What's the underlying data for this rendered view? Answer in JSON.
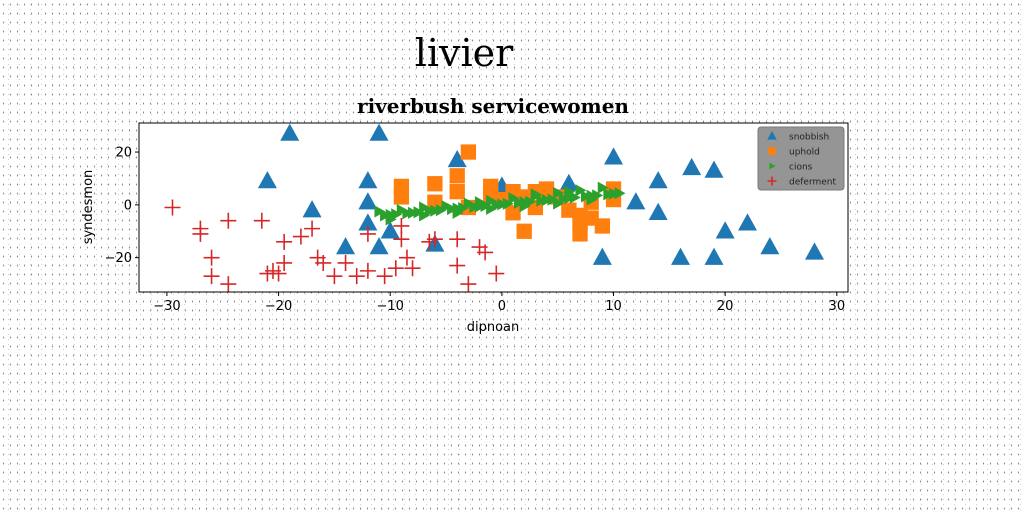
{
  "figure": {
    "suptitle": "livier"
  },
  "chart_data": {
    "type": "scatter",
    "title": "riverbush servicewomen",
    "xlabel": "dipnoan",
    "ylabel": "syndesmon",
    "xlim": [
      -32.5,
      31
    ],
    "ylim": [
      -33,
      31
    ],
    "xticks": [
      -30,
      -20,
      -10,
      0,
      10,
      20,
      30
    ],
    "yticks": [
      -20,
      0,
      20
    ],
    "xtick_labels": [
      "−30",
      "−20",
      "−10",
      "0",
      "10",
      "20",
      "30"
    ],
    "ytick_labels": [
      "−20",
      "0",
      "20"
    ],
    "grid": false,
    "legend": {
      "position": "top-right"
    },
    "series": [
      {
        "name": "snobbish",
        "marker": "triangle",
        "color": "#1f77b4",
        "points": [
          [
            -19,
            27
          ],
          [
            -11,
            27
          ],
          [
            -21,
            9
          ],
          [
            -17,
            -2
          ],
          [
            -12,
            9
          ],
          [
            -12,
            1
          ],
          [
            -12,
            -7
          ],
          [
            -14,
            -16
          ],
          [
            -11,
            -16
          ],
          [
            -10,
            -10
          ],
          [
            -4,
            17
          ],
          [
            -6,
            -15
          ],
          [
            0,
            7
          ],
          [
            6,
            8
          ],
          [
            10,
            18
          ],
          [
            12,
            1
          ],
          [
            14,
            -3
          ],
          [
            14,
            9
          ],
          [
            17,
            14
          ],
          [
            19,
            13
          ],
          [
            20,
            -10
          ],
          [
            22,
            -7
          ],
          [
            24,
            -16
          ],
          [
            28,
            -18
          ],
          [
            9,
            -20
          ],
          [
            16,
            -20
          ],
          [
            19,
            -20
          ]
        ]
      },
      {
        "name": "uphold",
        "marker": "square",
        "color": "#ff7f0e",
        "points": [
          [
            -9,
            7
          ],
          [
            -9,
            3
          ],
          [
            -6,
            8
          ],
          [
            -6,
            1
          ],
          [
            -4,
            11
          ],
          [
            -4,
            5
          ],
          [
            -3,
            20
          ],
          [
            -3,
            -1
          ],
          [
            -1,
            7
          ],
          [
            -1,
            3
          ],
          [
            0,
            2
          ],
          [
            1,
            -3
          ],
          [
            2,
            -10
          ],
          [
            2,
            3
          ],
          [
            3,
            5
          ],
          [
            3,
            -1
          ],
          [
            4,
            6
          ],
          [
            5,
            3
          ],
          [
            6,
            -2
          ],
          [
            7,
            -4
          ],
          [
            7,
            -7
          ],
          [
            7,
            -11
          ],
          [
            8,
            1
          ],
          [
            8,
            -5
          ],
          [
            9,
            -8
          ],
          [
            10,
            2
          ],
          [
            10,
            6
          ],
          [
            1,
            5
          ]
        ]
      },
      {
        "name": "cions",
        "marker": "triangle-right",
        "color": "#2ca02c",
        "points": [
          [
            -10.5,
            -4.0
          ],
          [
            -9.5,
            -3.6
          ],
          [
            -8.5,
            -3.2
          ],
          [
            -7.5,
            -2.8
          ],
          [
            -6.5,
            -2.4
          ],
          [
            -5.5,
            -2.0
          ],
          [
            -4.5,
            -1.6
          ],
          [
            -3.5,
            -1.2
          ],
          [
            -2.5,
            -0.8
          ],
          [
            -1.5,
            -0.4
          ],
          [
            -0.5,
            0.0
          ],
          [
            0.5,
            0.4
          ],
          [
            1.5,
            0.8
          ],
          [
            2.5,
            1.2
          ],
          [
            3.5,
            1.6
          ],
          [
            4.5,
            2.0
          ],
          [
            5.5,
            2.4
          ],
          [
            6.5,
            2.8
          ],
          [
            7.5,
            3.2
          ],
          [
            8.5,
            3.6
          ],
          [
            9.5,
            4.0
          ],
          [
            10.5,
            4.4
          ],
          [
            -10.0,
            -3.8
          ],
          [
            -8.0,
            -3.0
          ],
          [
            -6.0,
            -2.2
          ],
          [
            -4.0,
            -1.4
          ],
          [
            -2.0,
            -0.6
          ],
          [
            0.0,
            0.2
          ],
          [
            2.0,
            1.0
          ],
          [
            4.0,
            1.8
          ],
          [
            6.0,
            2.6
          ],
          [
            8.0,
            3.4
          ],
          [
            10.0,
            4.2
          ],
          [
            -11.0,
            -2.5
          ],
          [
            -9.0,
            -2.0
          ],
          [
            -7.0,
            -1.0
          ],
          [
            -5.0,
            -0.5
          ],
          [
            -3.0,
            0.5
          ],
          [
            -1.0,
            1.5
          ],
          [
            1.0,
            2.5
          ],
          [
            3.0,
            3.5
          ],
          [
            5.0,
            4.5
          ],
          [
            7.0,
            5.5
          ],
          [
            9.0,
            6.5
          ],
          [
            -10.0,
            -5.5
          ],
          [
            -7.0,
            -4.0
          ],
          [
            -4.0,
            -3.0
          ],
          [
            -1.0,
            -1.5
          ],
          [
            2.0,
            -0.5
          ],
          [
            5.0,
            0.5
          ],
          [
            8.0,
            2.0
          ],
          [
            -2.0,
            1.0
          ],
          [
            3.0,
            4.0
          ],
          [
            6.0,
            5.0
          ]
        ]
      },
      {
        "name": "deferment",
        "marker": "plus",
        "color": "#d62728",
        "points": [
          [
            -29.5,
            -1
          ],
          [
            -27,
            -9
          ],
          [
            -27,
            -11
          ],
          [
            -26,
            -20
          ],
          [
            -26,
            -27
          ],
          [
            -24.5,
            -6
          ],
          [
            -24.5,
            -30
          ],
          [
            -21.5,
            -6
          ],
          [
            -21,
            -26
          ],
          [
            -20.5,
            -25
          ],
          [
            -20,
            -26
          ],
          [
            -19.5,
            -14
          ],
          [
            -19.5,
            -22
          ],
          [
            -18,
            -12
          ],
          [
            -17,
            -9
          ],
          [
            -16.5,
            -20
          ],
          [
            -16,
            -22
          ],
          [
            -15,
            -27
          ],
          [
            -14,
            -22
          ],
          [
            -13,
            -27
          ],
          [
            -12,
            -11
          ],
          [
            -12,
            -25
          ],
          [
            -10.5,
            -27
          ],
          [
            -9.5,
            -24
          ],
          [
            -9,
            -8
          ],
          [
            -9,
            -13
          ],
          [
            -8.5,
            -20
          ],
          [
            -8,
            -24
          ],
          [
            -6.5,
            -14
          ],
          [
            -6,
            -13
          ],
          [
            -4,
            -13
          ],
          [
            -4,
            -23
          ],
          [
            -3,
            -30
          ],
          [
            -2,
            -16
          ],
          [
            -1.5,
            -18
          ],
          [
            -0.5,
            -26
          ]
        ]
      }
    ]
  }
}
